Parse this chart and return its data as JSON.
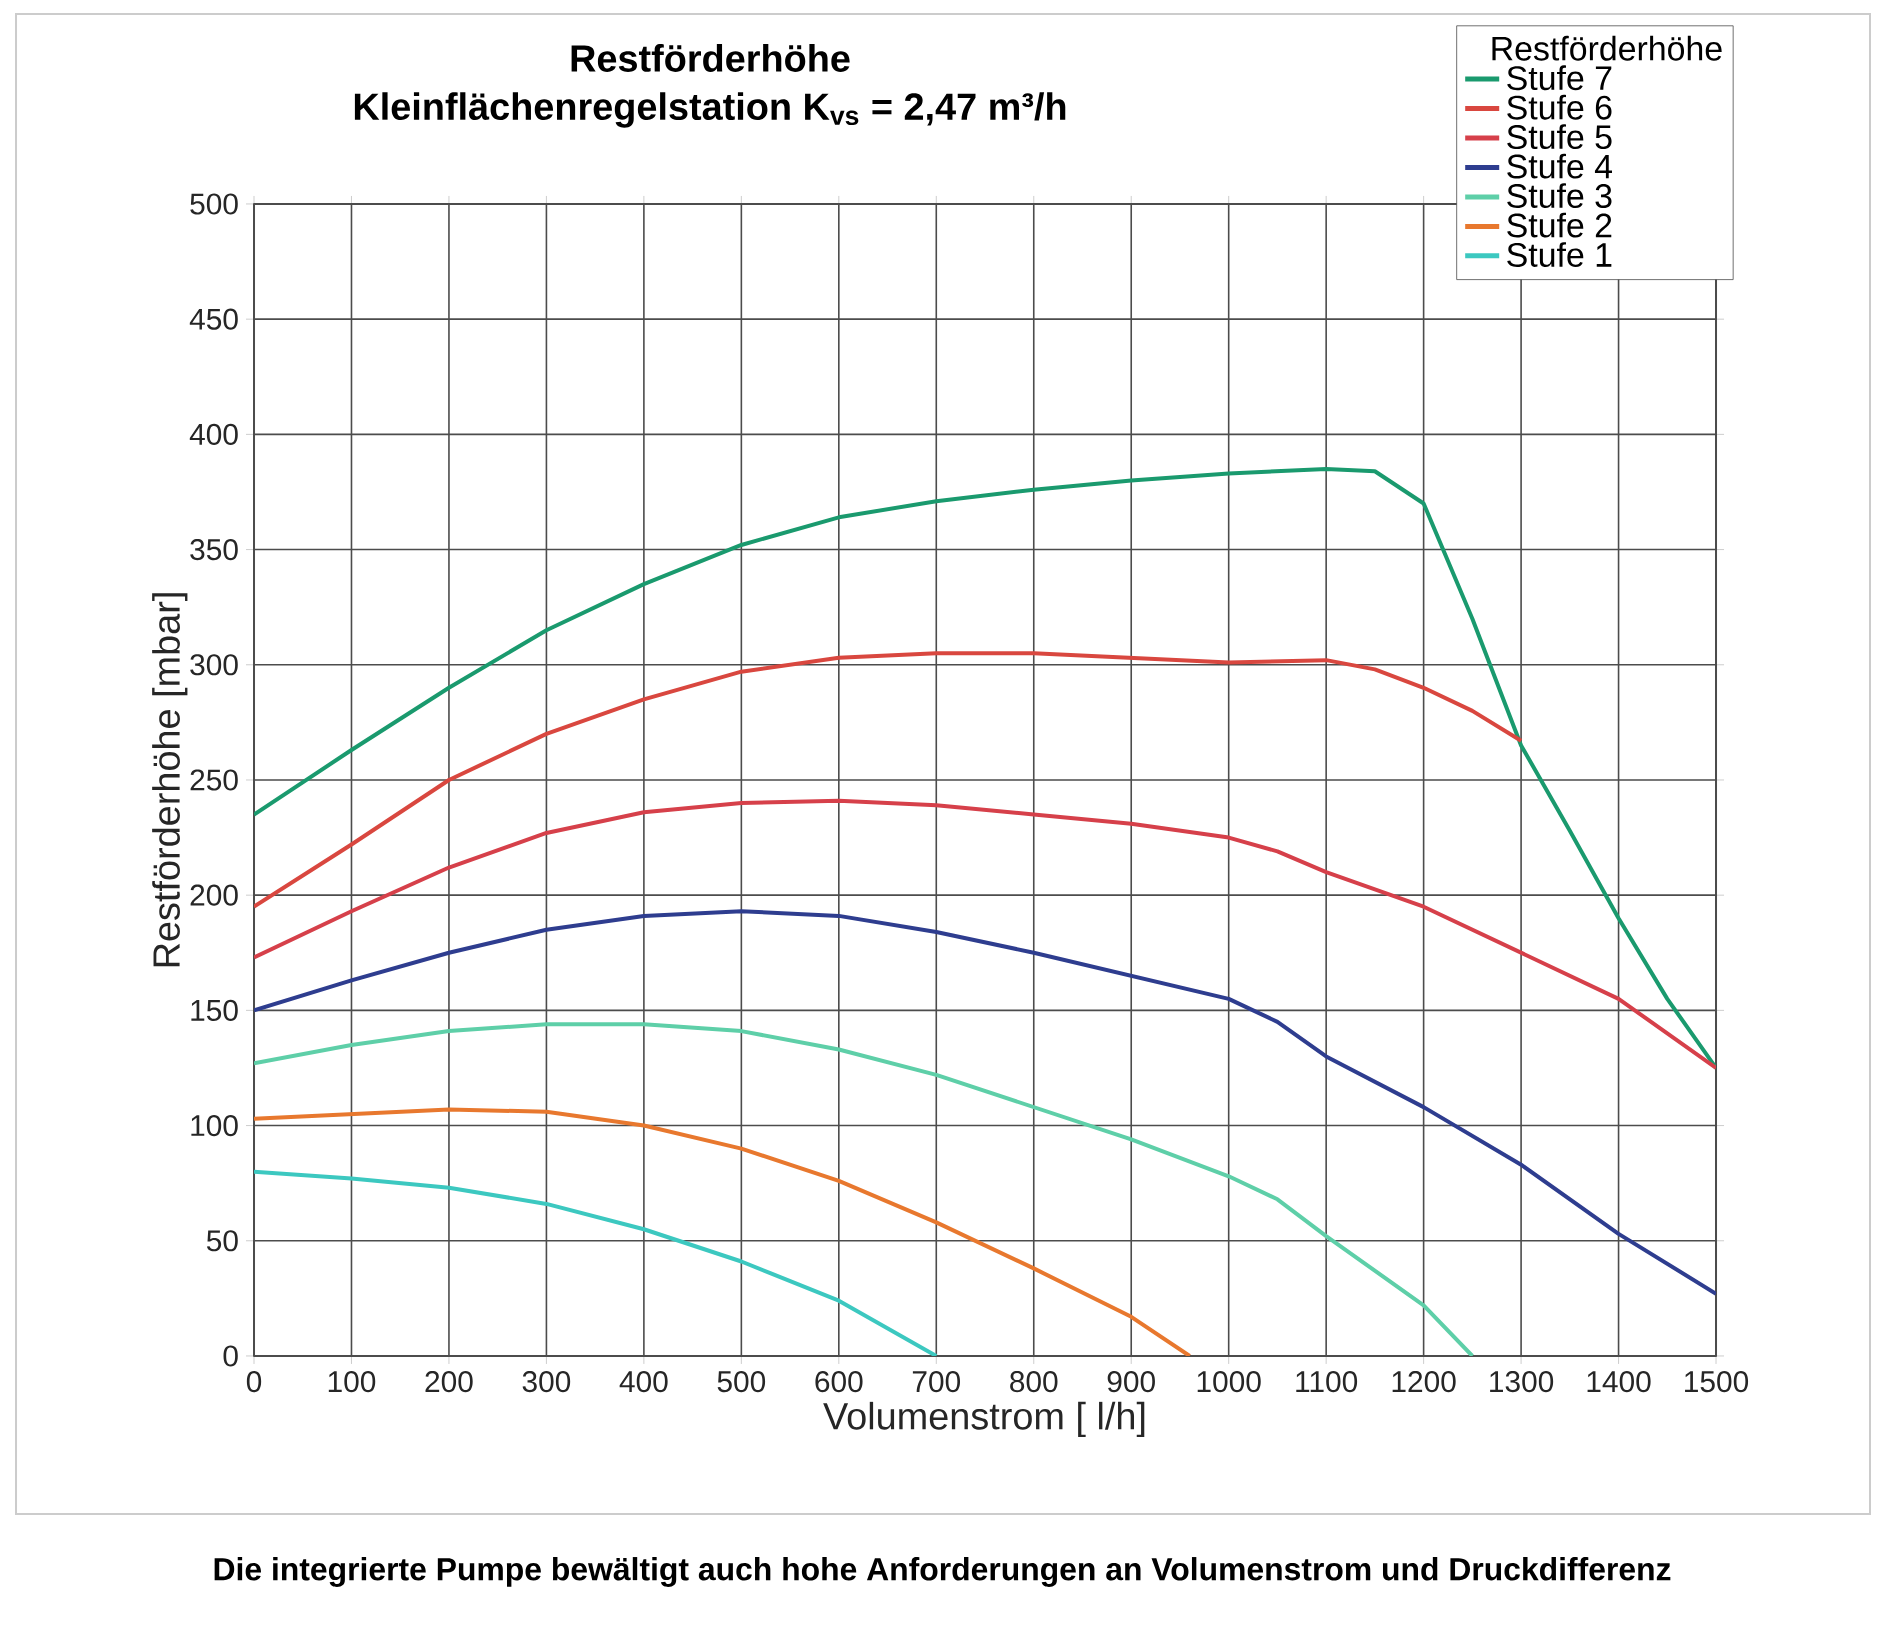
{
  "chart_data": {
    "type": "line",
    "title": "Restförderhöhe",
    "subtitle": "Kleinflächenregelstation K$_{vs}$ = 2,47 m³/h",
    "xlabel": "Volumenstrom [ l/h]",
    "ylabel": "Restförderhöhe [mbar]",
    "legend_title": "Restförderhöhe",
    "annotations": [
      "Die integrierte Pumpe bewältigt auch hohe Anforderungen an Volumenstrom und Druckdifferenz"
    ],
    "xlim": [
      0,
      1500
    ],
    "ylim": [
      0,
      500
    ],
    "xticks": [
      0,
      100,
      200,
      300,
      400,
      500,
      600,
      700,
      800,
      900,
      1000,
      1100,
      1200,
      1300,
      1400,
      1500
    ],
    "yticks": [
      0,
      50,
      100,
      150,
      200,
      250,
      300,
      350,
      400,
      450,
      500
    ],
    "grid": true,
    "legend": "top right",
    "line_style": "solid",
    "marker": "none",
    "series": [
      {
        "name": "Stufe 7",
        "color": "#1a9a6e",
        "x": [
          0,
          100,
          200,
          300,
          400,
          500,
          600,
          700,
          800,
          900,
          1000,
          1100,
          1150,
          1200,
          1250,
          1300,
          1350,
          1400,
          1450,
          1500
        ],
        "values": [
          235,
          263,
          290,
          315,
          335,
          352,
          364,
          371,
          376,
          380,
          383,
          385,
          384,
          370,
          320,
          265,
          228,
          190,
          155,
          125
        ]
      },
      {
        "name": "Stufe 6",
        "color": "#d9473f",
        "x": [
          0,
          100,
          200,
          300,
          400,
          500,
          600,
          700,
          800,
          900,
          1000,
          1100,
          1150,
          1200,
          1250,
          1300
        ],
        "values": [
          195,
          222,
          250,
          270,
          285,
          297,
          303,
          305,
          305,
          303,
          301,
          302,
          298,
          290,
          280,
          267
        ]
      },
      {
        "name": "Stufe 5",
        "color": "#d6404a",
        "x": [
          0,
          100,
          200,
          300,
          400,
          500,
          600,
          700,
          800,
          900,
          1000,
          1050,
          1100,
          1200,
          1300,
          1400,
          1500
        ],
        "values": [
          173,
          193,
          212,
          227,
          236,
          240,
          241,
          239,
          235,
          231,
          225,
          219,
          210,
          195,
          175,
          155,
          125
        ]
      },
      {
        "name": "Stufe 4",
        "color": "#2e3d8f",
        "x": [
          0,
          100,
          200,
          300,
          400,
          500,
          600,
          700,
          800,
          900,
          1000,
          1050,
          1100,
          1200,
          1300,
          1400,
          1500
        ],
        "values": [
          150,
          163,
          175,
          185,
          191,
          193,
          191,
          184,
          175,
          165,
          155,
          145,
          130,
          108,
          83,
          53,
          27
        ]
      },
      {
        "name": "Stufe 3",
        "color": "#5ecfa8",
        "x": [
          0,
          100,
          200,
          300,
          400,
          500,
          600,
          700,
          800,
          900,
          1000,
          1050,
          1100,
          1200,
          1250
        ],
        "values": [
          127,
          135,
          141,
          144,
          144,
          141,
          133,
          122,
          108,
          94,
          78,
          68,
          52,
          22,
          0
        ]
      },
      {
        "name": "Stufe 2",
        "color": "#e8782e",
        "x": [
          0,
          100,
          200,
          300,
          400,
          500,
          600,
          700,
          800,
          900,
          960
        ],
        "values": [
          103,
          105,
          107,
          106,
          100,
          90,
          76,
          58,
          38,
          17,
          0
        ]
      },
      {
        "name": "Stufe 1",
        "color": "#3cc8c0",
        "x": [
          0,
          100,
          200,
          300,
          400,
          500,
          600,
          700
        ],
        "values": [
          80,
          77,
          73,
          66,
          55,
          41,
          24,
          0
        ]
      }
    ]
  }
}
